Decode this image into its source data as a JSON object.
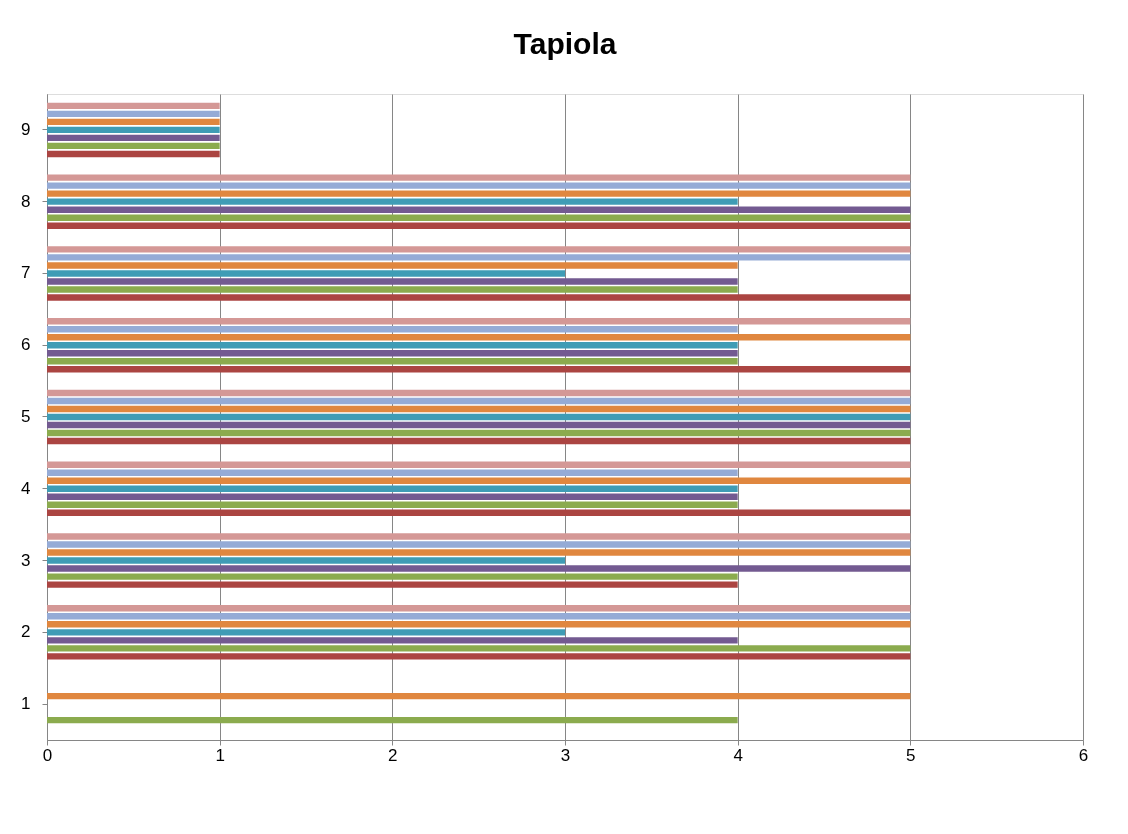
{
  "chart_data": {
    "type": "bar",
    "orientation": "horizontal",
    "title": "Tapiola",
    "categories": [
      "9",
      "8",
      "7",
      "6",
      "5",
      "4",
      "3",
      "2",
      "1"
    ],
    "series": [
      {
        "color": "#ab4542",
        "values": [
          1,
          5,
          5,
          5,
          5,
          5,
          4,
          5,
          null
        ]
      },
      {
        "color": "#8bab4e",
        "values": [
          1,
          5,
          4,
          4,
          5,
          4,
          4,
          5,
          4
        ]
      },
      {
        "color": "#735a91",
        "values": [
          1,
          5,
          4,
          4,
          5,
          4,
          5,
          4,
          null
        ]
      },
      {
        "color": "#3f9cb5",
        "values": [
          1,
          4,
          3,
          4,
          5,
          4,
          3,
          3,
          null
        ]
      },
      {
        "color": "#e0873f",
        "values": [
          1,
          5,
          4,
          5,
          5,
          5,
          5,
          5,
          5
        ]
      },
      {
        "color": "#95abd6",
        "values": [
          1,
          5,
          5,
          4,
          5,
          4,
          5,
          5,
          null
        ]
      },
      {
        "color": "#d49896",
        "values": [
          1,
          5,
          5,
          5,
          5,
          5,
          5,
          5,
          null
        ]
      }
    ],
    "xlim": [
      0,
      6
    ],
    "xticks": [
      0,
      1,
      2,
      3,
      4,
      5,
      6
    ],
    "grid": "x"
  }
}
